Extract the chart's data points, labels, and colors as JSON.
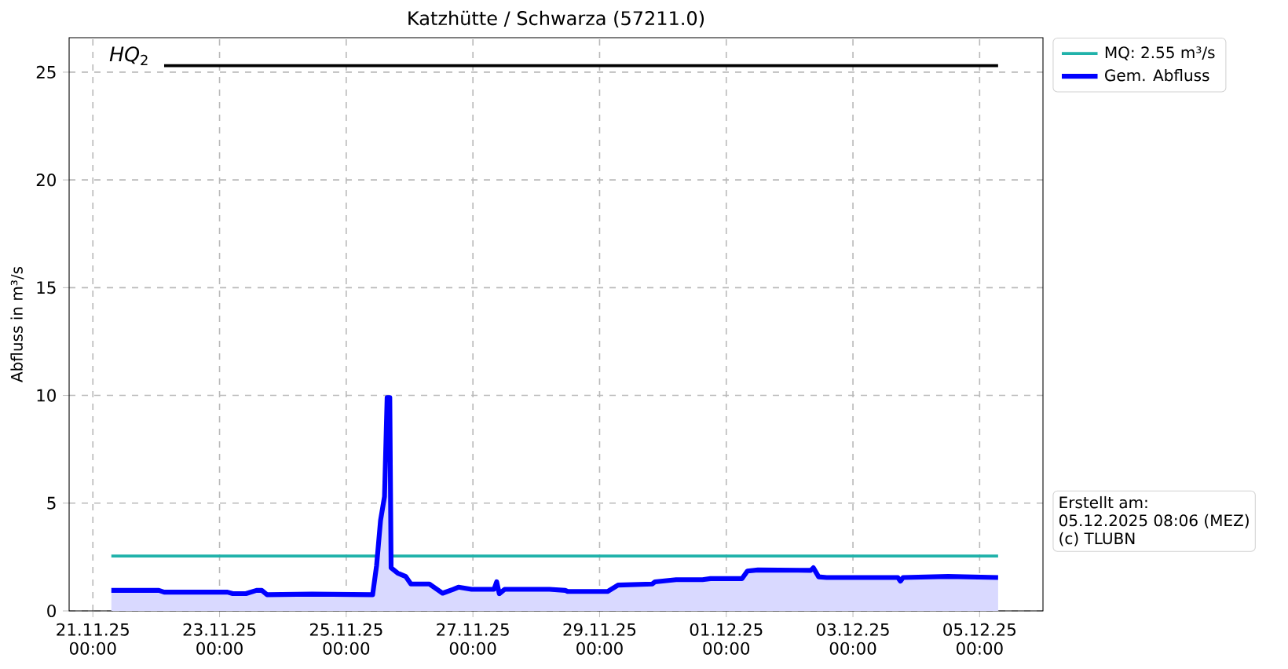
{
  "chart_data": {
    "type": "line",
    "title": "Katzhütte / Schwarza (57211.0)",
    "ylabel": "Abfluss in m³/s",
    "xlim": [
      "2025-11-20T15:00",
      "2025-12-06T00:00"
    ],
    "ylim": [
      0,
      26.6
    ],
    "xticks": [
      {
        "value": "2025-11-21T00:00",
        "label": "21.11.25 00:00"
      },
      {
        "value": "2025-11-23T00:00",
        "label": "23.11.25 00:00"
      },
      {
        "value": "2025-11-25T00:00",
        "label": "25.11.25 00:00"
      },
      {
        "value": "2025-11-27T00:00",
        "label": "27.11.25 00:00"
      },
      {
        "value": "2025-11-29T00:00",
        "label": "29.11.25 00:00"
      },
      {
        "value": "2025-12-01T00:00",
        "label": "01.12.25 00:00"
      },
      {
        "value": "2025-12-03T00:00",
        "label": "03.12.25 00:00"
      },
      {
        "value": "2025-12-05T00:00",
        "label": "05.12.25 00:00"
      }
    ],
    "yticks": [
      0,
      5,
      10,
      15,
      20,
      25
    ],
    "grid": true,
    "legend": "top right",
    "marker": "none",
    "line_style": "solid",
    "series": [
      {
        "color": "#000000",
        "x": [
          "2025-11-22T03:00",
          "2025-12-05T07:00"
        ],
        "values": [
          25.3,
          25.3
        ]
      },
      {
        "name": "MQ: 2.55 m³/s",
        "color": "#20b2aa",
        "x": [
          "2025-11-21T07:00",
          "2025-12-05T07:00"
        ],
        "values": [
          2.55,
          2.55
        ]
      },
      {
        "type": "area",
        "name": "Gem. Abfluss",
        "color": "#0000ff",
        "x": [
          "2025-11-21T07:00",
          "2025-11-22T01:00",
          "2025-11-22T03:00",
          "2025-11-23T03:00",
          "2025-11-23T05:00",
          "2025-11-23T10:00",
          "2025-11-23T14:00",
          "2025-11-23T16:00",
          "2025-11-23T18:00",
          "2025-11-24T11:00",
          "2025-11-25T10:00",
          "2025-11-25T11:30",
          "2025-11-25T13:00",
          "2025-11-25T14:30",
          "2025-11-25T15:30",
          "2025-11-25T16:30",
          "2025-11-25T17:00",
          "2025-11-25T19:30",
          "2025-11-25T22:30",
          "2025-11-26T00:30",
          "2025-11-26T07:30",
          "2025-11-26T12:30",
          "2025-11-26T16:30",
          "2025-11-26T18:30",
          "2025-11-26T23:30",
          "2025-11-27T08:00",
          "2025-11-27T09:00",
          "2025-11-27T10:00",
          "2025-11-27T12:00",
          "2025-11-28T05:00",
          "2025-11-28T11:00",
          "2025-11-28T12:00",
          "2025-11-29T03:00",
          "2025-11-29T07:00",
          "2025-11-29T20:00",
          "2025-11-29T21:00",
          "2025-11-30T05:00",
          "2025-11-30T15:00",
          "2025-11-30T18:00",
          "2025-12-01T06:00",
          "2025-12-01T08:00",
          "2025-12-01T12:00",
          "2025-12-02T08:00",
          "2025-12-02T09:00",
          "2025-12-02T11:00",
          "2025-12-02T14:00",
          "2025-12-03T17:00",
          "2025-12-03T18:00",
          "2025-12-03T19:00",
          "2025-12-04T12:00",
          "2025-12-05T07:00"
        ],
        "values": [
          0.95,
          0.95,
          0.87,
          0.87,
          0.8,
          0.8,
          0.95,
          0.95,
          0.75,
          0.78,
          0.75,
          2.1,
          4.2,
          5.3,
          9.9,
          9.9,
          2.0,
          1.75,
          1.6,
          1.25,
          1.25,
          0.82,
          1.0,
          1.1,
          1.0,
          1.0,
          1.35,
          0.8,
          1.0,
          1.0,
          0.95,
          0.9,
          0.9,
          1.2,
          1.25,
          1.35,
          1.45,
          1.45,
          1.5,
          1.5,
          1.85,
          1.9,
          1.88,
          2.0,
          1.58,
          1.55,
          1.55,
          1.38,
          1.55,
          1.6,
          1.55
        ]
      }
    ],
    "annotations": [
      "*HQ*$_{2}$",
      "Erstellt am:",
      "05.12.2025 08:06 (MEZ)",
      "(c) TLUBN"
    ]
  }
}
